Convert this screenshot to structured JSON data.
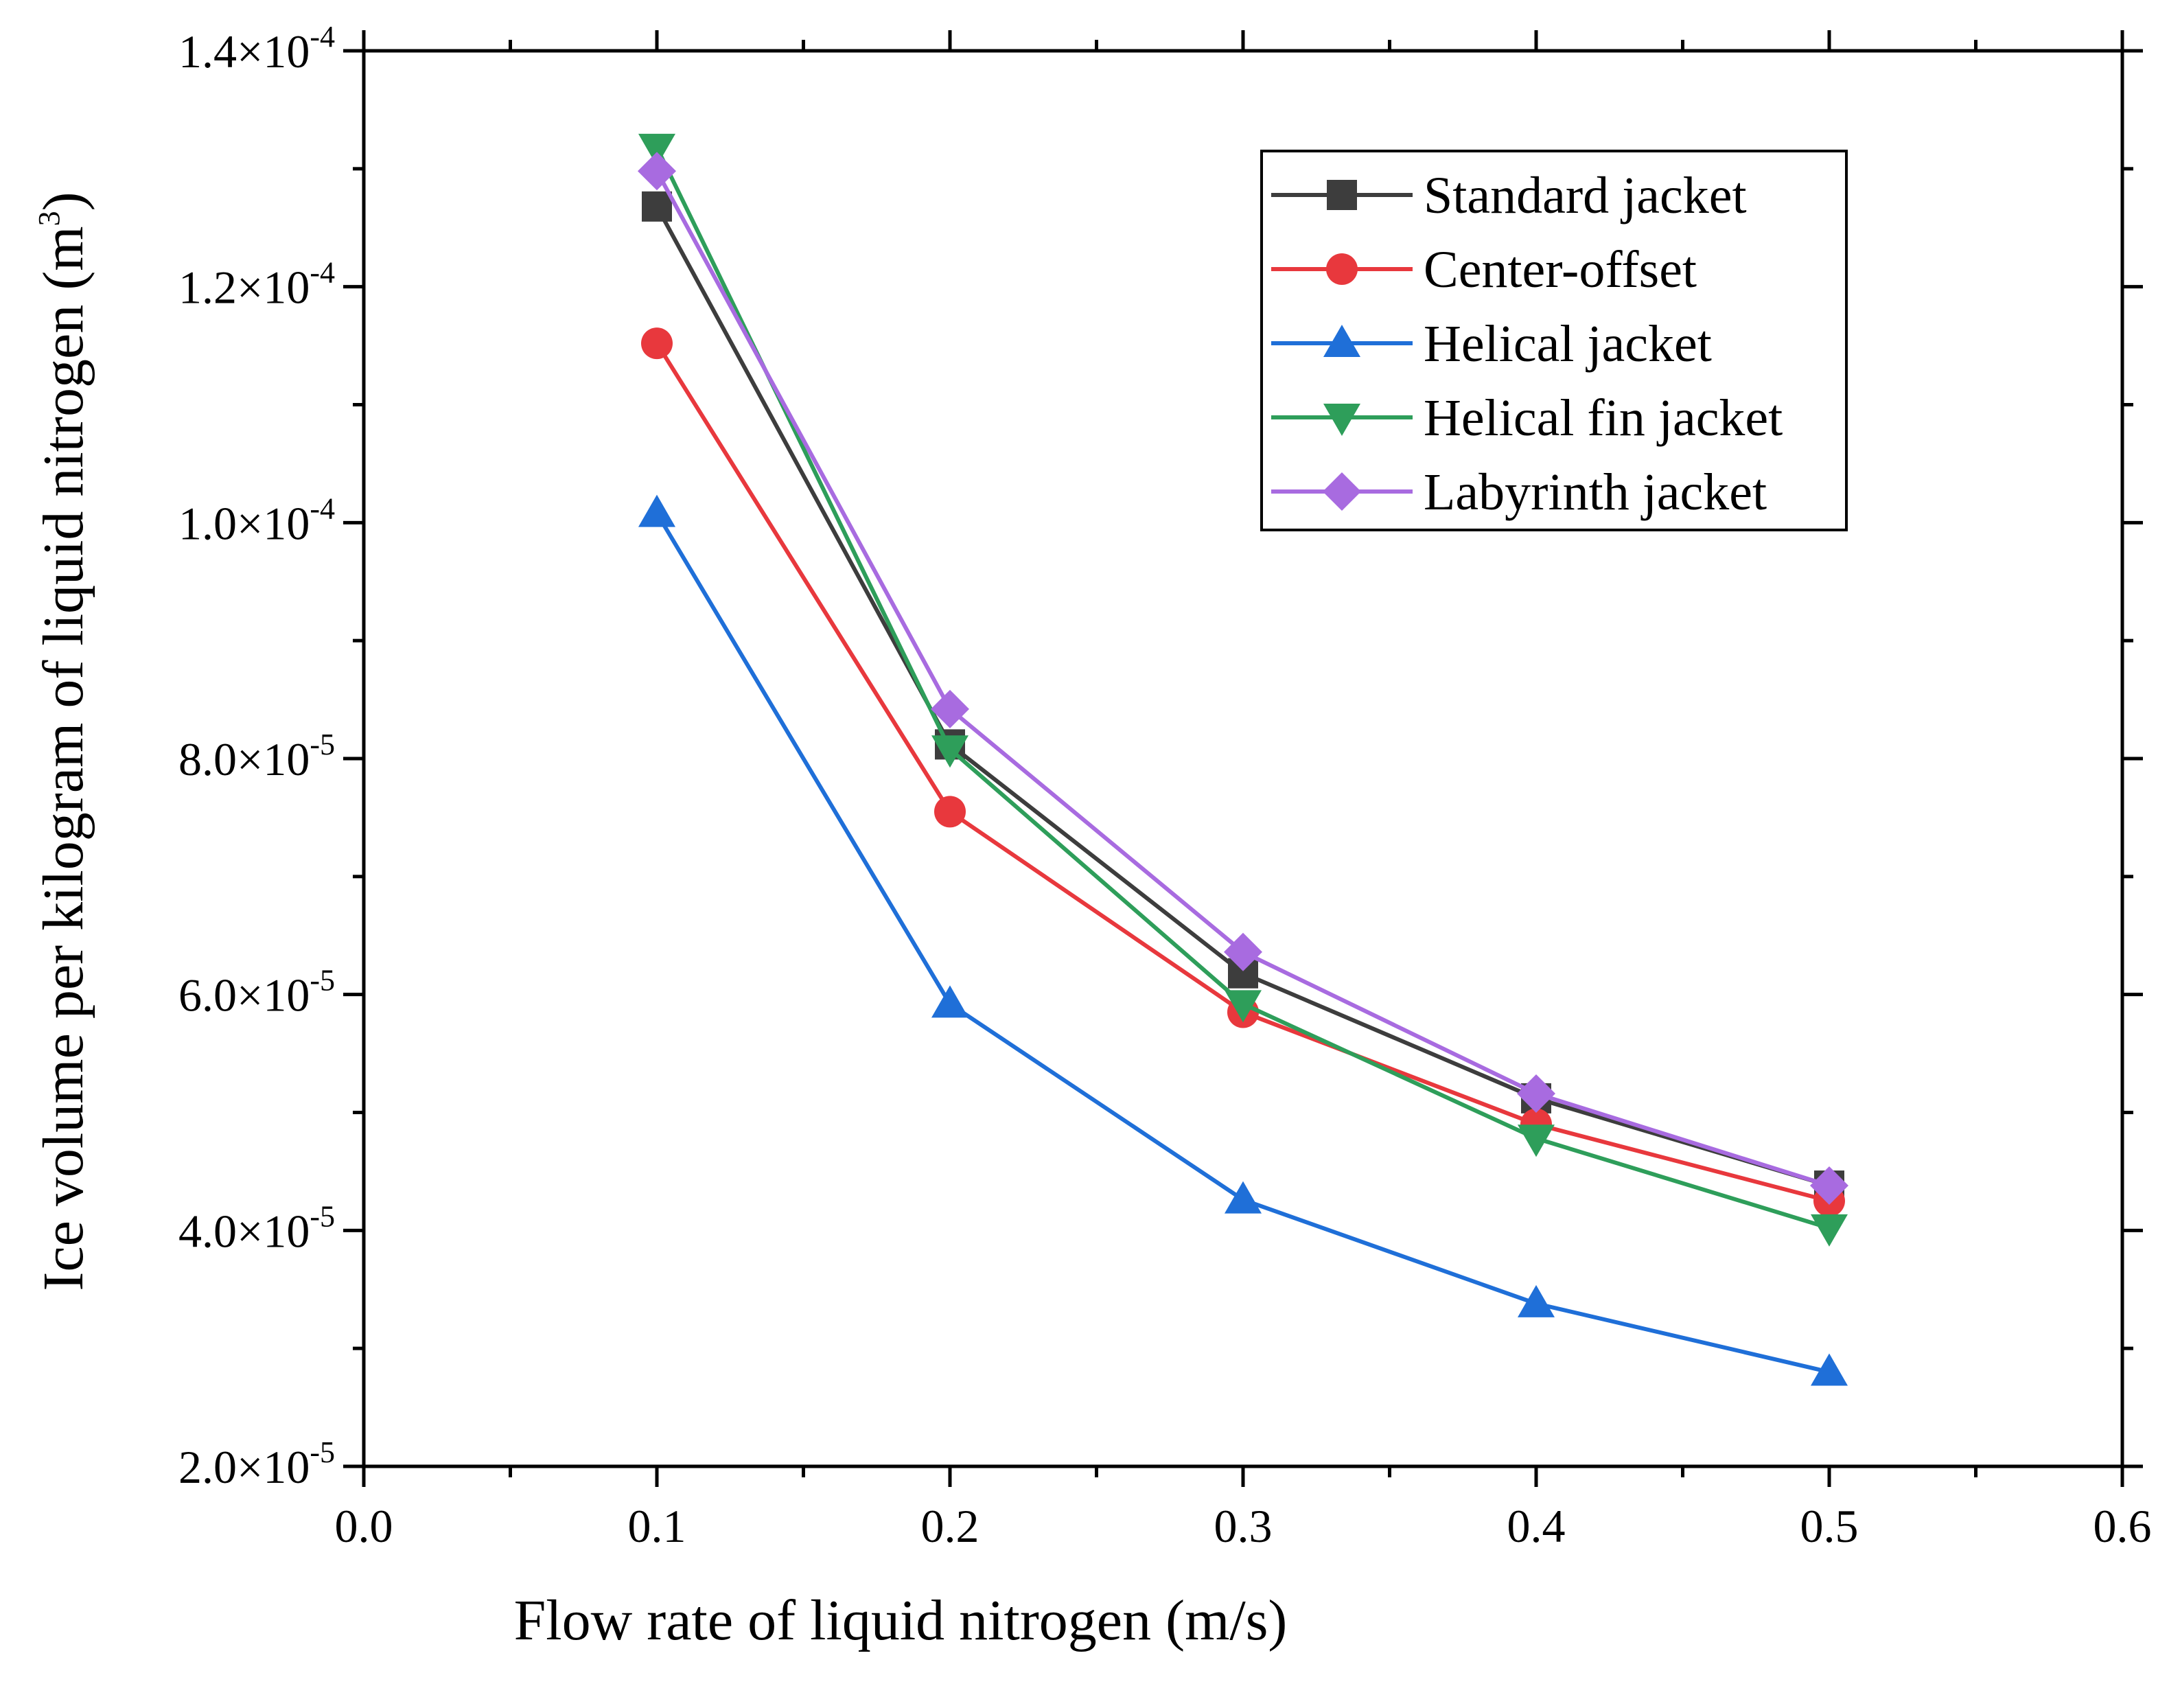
{
  "chart_data": {
    "type": "line",
    "xlabel": "Flow rate of liquid nitrogen (m/s)",
    "ylabel": "Ice volume per kilogram of liquid nitrogen (m3)",
    "ylabel_main": "Ice volume per kilogram of liquid nitrogen (m",
    "ylabel_sup": "3",
    "ylabel_close": ")",
    "xlim": [
      0.0,
      0.6
    ],
    "ylim": [
      2e-05,
      0.00014
    ],
    "x_ticks": [
      0.0,
      0.1,
      0.2,
      0.3,
      0.4,
      0.5,
      0.6
    ],
    "x_tick_labels": [
      "0.0",
      "0.1",
      "0.2",
      "0.3",
      "0.4",
      "0.5",
      "0.6"
    ],
    "y_ticks": [
      2e-05,
      4e-05,
      6e-05,
      8e-05,
      0.0001,
      0.00012,
      0.00014
    ],
    "y_tick_labels": [
      {
        "mant": "2.0×10",
        "exp": "-5"
      },
      {
        "mant": "4.0×10",
        "exp": "-5"
      },
      {
        "mant": "6.0×10",
        "exp": "-5"
      },
      {
        "mant": "8.0×10",
        "exp": "-5"
      },
      {
        "mant": "1.0×10",
        "exp": "-4"
      },
      {
        "mant": "1.2×10",
        "exp": "-4"
      },
      {
        "mant": "1.4×10",
        "exp": "-4"
      }
    ],
    "x": [
      0.1,
      0.2,
      0.3,
      0.4,
      0.5
    ],
    "series": [
      {
        "name": "Standard jacket",
        "color": "#3d3d3d",
        "marker": "square",
        "values": [
          0.0001268,
          8.12e-05,
          6.18e-05,
          5.12e-05,
          4.38e-05
        ]
      },
      {
        "name": "Center-offset",
        "color": "#e8383d",
        "marker": "circle",
        "values": [
          0.0001152,
          7.55e-05,
          5.85e-05,
          4.9e-05,
          4.25e-05
        ]
      },
      {
        "name": "Helical jacket",
        "color": "#1f6fd8",
        "marker": "triangle-up",
        "values": [
          0.0001008,
          5.92e-05,
          4.26e-05,
          3.38e-05,
          2.8e-05
        ]
      },
      {
        "name": "Helical fin jacket",
        "color": "#2e9e5a",
        "marker": "triangle-down",
        "values": [
          0.0001318,
          8.08e-05,
          5.92e-05,
          4.78e-05,
          4.02e-05
        ]
      },
      {
        "name": "Labyrinth jacket",
        "color": "#a86be0",
        "marker": "diamond",
        "values": [
          0.0001298,
          8.42e-05,
          6.36e-05,
          5.16e-05,
          4.38e-05
        ]
      }
    ],
    "legend_position": "top-right",
    "grid": false
  }
}
